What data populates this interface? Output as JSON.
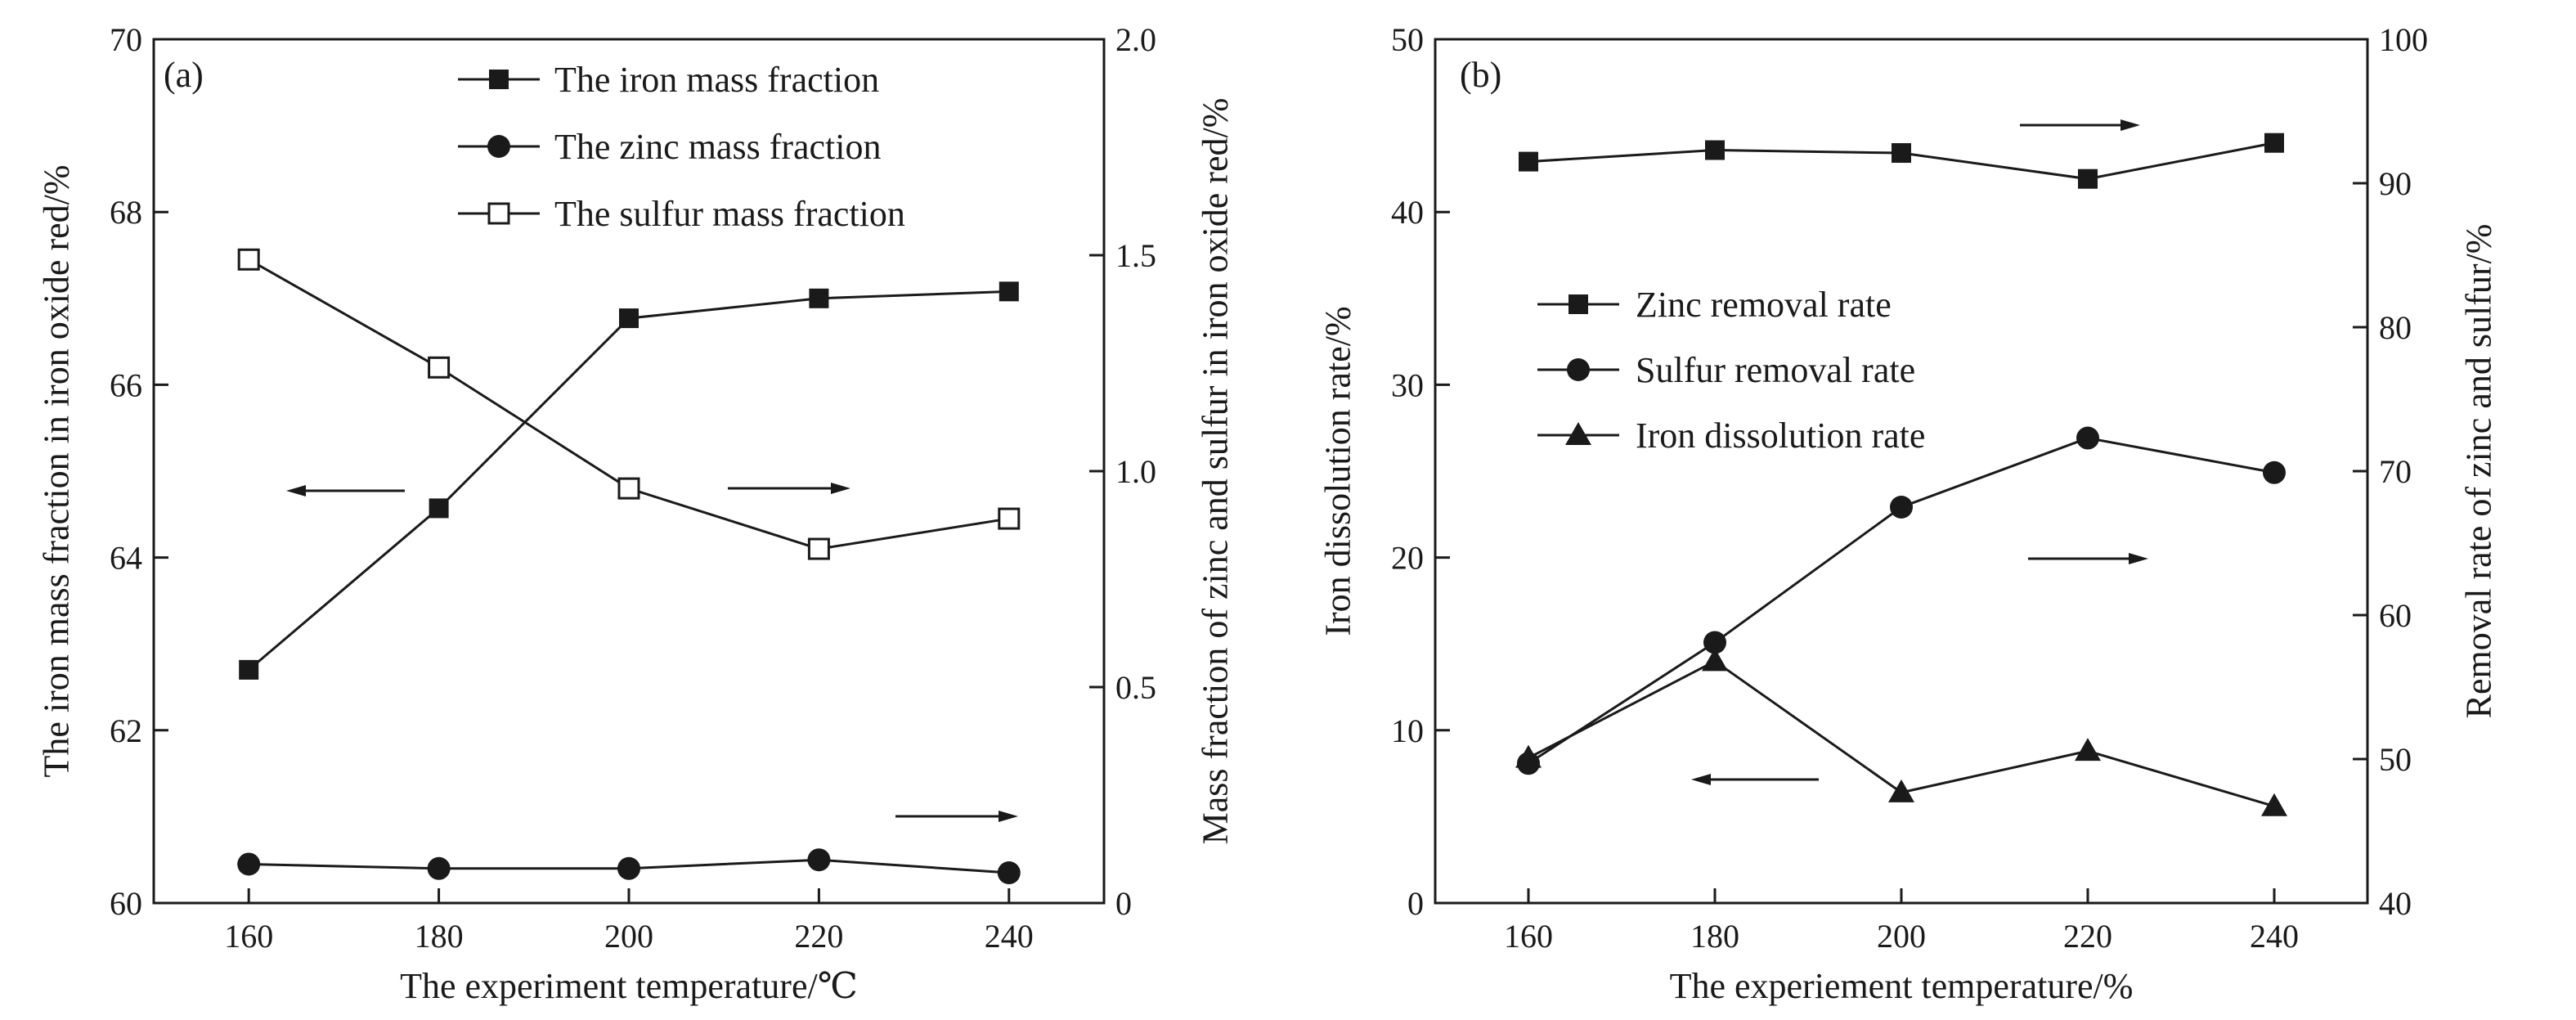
{
  "chart_data": [
    {
      "type": "line",
      "panel_label": "(a)",
      "xlabel": "The experiment temperature/℃",
      "x": [
        160,
        180,
        200,
        220,
        240
      ],
      "x_ticks": [
        160,
        180,
        200,
        220,
        240
      ],
      "xlim": [
        150,
        250
      ],
      "y_left": {
        "label": "The iron mass fraction in iron oxide red/%",
        "lim": [
          60,
          70
        ],
        "ticks": [
          60,
          62,
          64,
          66,
          68,
          70
        ]
      },
      "y_right": {
        "label": "Mass fraction of zinc and sulfur in iron oxide red/%",
        "lim": [
          0,
          2.0
        ],
        "ticks": [
          "0",
          "0.5",
          "1.0",
          "1.5",
          "2.0"
        ]
      },
      "series": [
        {
          "name": "The iron mass fraction",
          "axis": "left",
          "marker": "square-filled",
          "values": [
            62.7,
            64.57,
            66.77,
            67.0,
            67.08
          ]
        },
        {
          "name": "The zinc mass fraction",
          "axis": "right",
          "marker": "circle-filled",
          "values": [
            0.09,
            0.08,
            0.08,
            0.1,
            0.07
          ]
        },
        {
          "name": "The sulfur mass fraction",
          "axis": "right",
          "marker": "square-open",
          "values": [
            1.49,
            1.24,
            0.96,
            0.82,
            0.89
          ]
        }
      ],
      "legend_position": "top-right",
      "axis_arrows": [
        {
          "direction": "left",
          "refers_to": "left axis"
        },
        {
          "direction": "right",
          "refers_to": "right axis"
        },
        {
          "direction": "right",
          "refers_to": "right axis"
        }
      ]
    },
    {
      "type": "line",
      "panel_label": "(b)",
      "xlabel": "The experiement temperature/%",
      "x": [
        160,
        180,
        200,
        220,
        240
      ],
      "x_ticks": [
        160,
        180,
        200,
        220,
        240
      ],
      "xlim": [
        150,
        250
      ],
      "y_left": {
        "label": "Iron dissolution rate/%",
        "lim": [
          0,
          50
        ],
        "ticks": [
          0,
          10,
          20,
          30,
          40,
          50
        ]
      },
      "y_right": {
        "label": "Removal rate of zinc and sulfur/%",
        "lim": [
          40,
          100
        ],
        "ticks": [
          40,
          50,
          60,
          70,
          80,
          90,
          100
        ]
      },
      "series": [
        {
          "name": "Zinc removal rate",
          "axis": "right",
          "marker": "square-filled",
          "values": [
            91.5,
            92.3,
            92.1,
            90.3,
            92.8
          ]
        },
        {
          "name": "Sulfur removal rate",
          "axis": "right",
          "marker": "circle-filled",
          "values": [
            49.7,
            58.1,
            67.5,
            72.3,
            69.9
          ]
        },
        {
          "name": "Iron dissolution rate",
          "axis": "left",
          "marker": "triangle-filled",
          "values": [
            8.4,
            14.0,
            6.4,
            8.8,
            5.6
          ]
        }
      ],
      "legend_position": "center-left",
      "axis_arrows": [
        {
          "direction": "right",
          "refers_to": "right axis"
        },
        {
          "direction": "right",
          "refers_to": "right axis"
        },
        {
          "direction": "left",
          "refers_to": "left axis"
        }
      ]
    }
  ]
}
